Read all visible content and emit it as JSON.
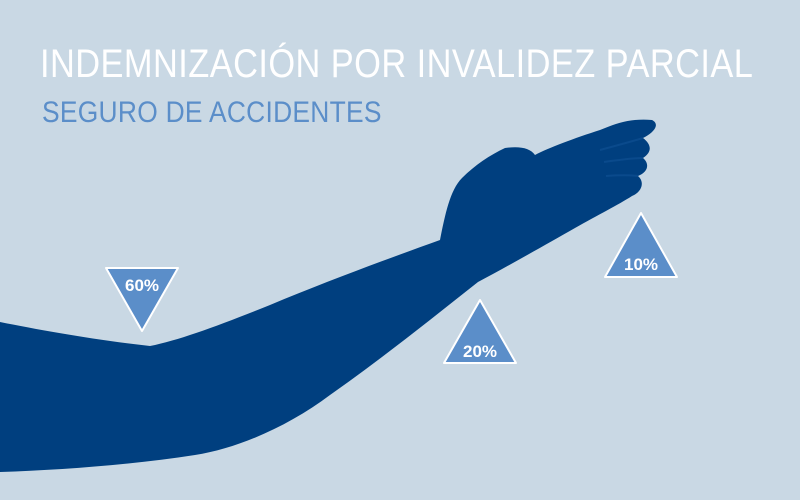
{
  "header": {
    "title": "INDEMNIZACIÓN POR INVALIDEZ PARCIAL",
    "subtitle": "SEGURO DE ACCIDENTES"
  },
  "markers": [
    {
      "id": "upper-arm",
      "label": "60%"
    },
    {
      "id": "wrist",
      "label": "20%"
    },
    {
      "id": "hand",
      "label": "10%"
    }
  ],
  "colors": {
    "background": "#c9d8e4",
    "arm": "#003f7f",
    "marker": "#5b8ec9",
    "title": "#ffffff",
    "subtitle": "#5b8ec9"
  }
}
